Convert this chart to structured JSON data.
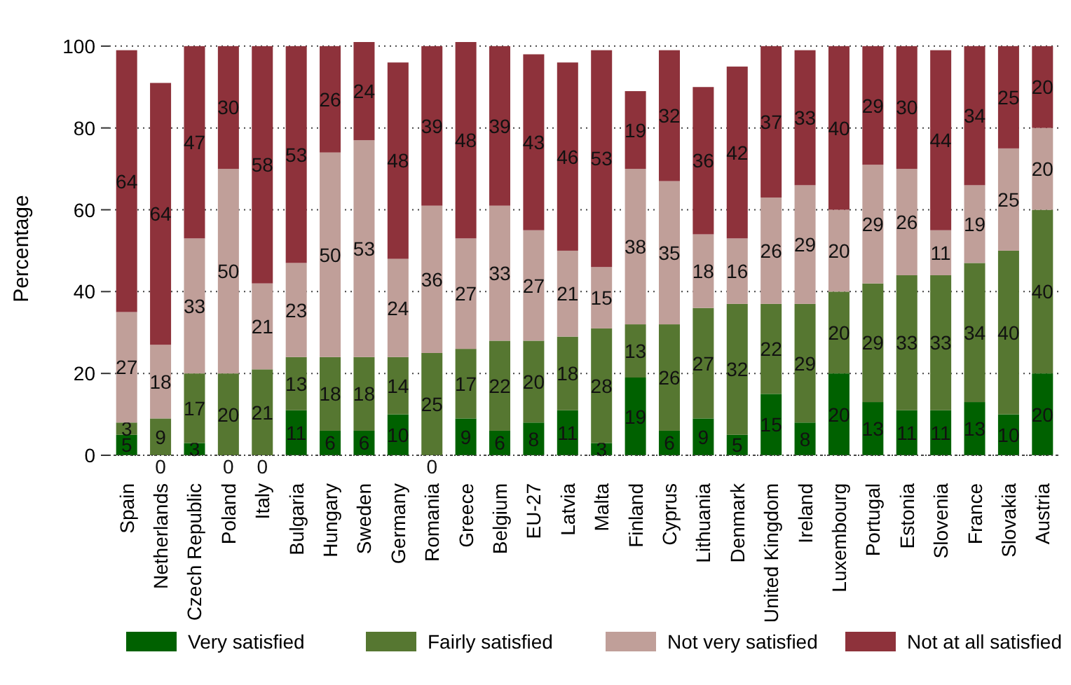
{
  "chart_data": {
    "type": "bar",
    "stacked": true,
    "ylabel": "Percentage",
    "categories": [
      "Spain",
      "Netherlands",
      "Czech Republic",
      "Poland",
      "Italy",
      "Bulgaria",
      "Hungary",
      "Sweden",
      "Germany",
      "Romania",
      "Greece",
      "Belgium",
      "EU-27",
      "Latvia",
      "Malta",
      "Finland",
      "Cyprus",
      "Lithuania",
      "Denmark",
      "United Kingdom",
      "Ireland",
      "Luxembourg",
      "Portugal",
      "Estonia",
      "Slovenia",
      "France",
      "Slovakia",
      "Austria"
    ],
    "series": [
      {
        "name": "Very satisfied",
        "color": "#006100",
        "values": [
          5,
          0,
          3,
          0,
          0,
          11,
          6,
          6,
          10,
          0,
          9,
          6,
          8,
          11,
          3,
          19,
          6,
          9,
          5,
          15,
          8,
          20,
          13,
          11,
          11,
          13,
          10,
          20
        ],
        "value_labels": [
          "5",
          null,
          "3",
          null,
          null,
          "11",
          "6",
          "6",
          "10",
          null,
          "9",
          "6",
          "8",
          "11",
          "3",
          "19",
          "6",
          "9",
          "5",
          "15",
          "8",
          "20",
          "13",
          "11",
          "11",
          "13",
          "10",
          "20"
        ]
      },
      {
        "name": "Fairly satisfied",
        "color": "#567731",
        "values": [
          3,
          9,
          17,
          20,
          21,
          13,
          18,
          18,
          14,
          25,
          17,
          22,
          20,
          18,
          28,
          13,
          26,
          27,
          32,
          22,
          29,
          20,
          29,
          33,
          33,
          34,
          40,
          40
        ]
      },
      {
        "name": "Not very satisfied",
        "color": "#c09f99",
        "values": [
          27,
          18,
          33,
          50,
          21,
          23,
          50,
          53,
          24,
          36,
          27,
          33,
          27,
          21,
          15,
          38,
          35,
          18,
          16,
          26,
          29,
          20,
          29,
          26,
          11,
          19,
          25,
          20
        ]
      },
      {
        "name": "Not at all satisfied",
        "color": "#8e323b",
        "values": [
          64,
          64,
          47,
          30,
          58,
          53,
          26,
          24,
          48,
          39,
          48,
          39,
          43,
          46,
          53,
          19,
          32,
          36,
          42,
          37,
          33,
          40,
          29,
          30,
          44,
          34,
          25,
          20
        ]
      }
    ],
    "annotations": [
      {
        "text": "0",
        "x": "Netherlands",
        "y": 0
      },
      {
        "text": "0",
        "x": "Poland",
        "y": 0
      },
      {
        "text": "0",
        "x": "Italy",
        "y": 0
      },
      {
        "text": "0",
        "x": "Romania",
        "y": 0
      }
    ],
    "ylim": [
      0,
      101
    ],
    "yticks": [
      0,
      20,
      40,
      60,
      80,
      100
    ],
    "grid": "y",
    "legend": "bottom",
    "data_labels": true
  }
}
